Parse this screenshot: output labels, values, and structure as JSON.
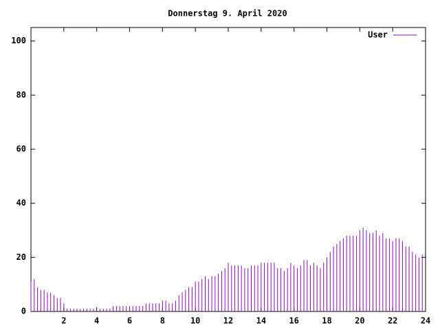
{
  "chart_data": {
    "type": "impulse",
    "title": "Donnerstag 9. April 2020",
    "x": [
      0,
      0.2,
      0.4,
      0.6,
      0.8,
      1,
      1.2,
      1.4,
      1.6,
      1.8,
      2,
      2.2,
      2.4,
      2.6,
      2.8,
      3,
      3.2,
      3.4,
      3.6,
      3.8,
      4,
      4.2,
      4.4,
      4.6,
      4.8,
      5,
      5.2,
      5.4,
      5.6,
      5.8,
      6,
      6.2,
      6.4,
      6.6,
      6.8,
      7,
      7.2,
      7.4,
      7.6,
      7.8,
      8,
      8.2,
      8.4,
      8.6,
      8.8,
      9,
      9.2,
      9.4,
      9.6,
      9.8,
      10,
      10.2,
      10.4,
      10.6,
      10.8,
      11,
      11.2,
      11.4,
      11.6,
      11.8,
      12,
      12.2,
      12.4,
      12.6,
      12.8,
      13,
      13.2,
      13.4,
      13.6,
      13.8,
      14,
      14.2,
      14.4,
      14.6,
      14.8,
      15,
      15.2,
      15.4,
      15.6,
      15.8,
      16,
      16.2,
      16.4,
      16.6,
      16.8,
      17,
      17.2,
      17.4,
      17.6,
      17.8,
      18,
      18.2,
      18.4,
      18.6,
      18.8,
      19,
      19.2,
      19.4,
      19.6,
      19.8,
      20,
      20.2,
      20.4,
      20.6,
      20.8,
      21,
      21.2,
      21.4,
      21.6,
      21.8,
      22,
      22.2,
      22.4,
      22.6,
      22.8,
      23,
      23.2,
      23.4,
      23.6,
      23.8
    ],
    "series": [
      {
        "name": "User",
        "color": "#9400d3",
        "values": [
          11,
          12,
          9,
          8,
          8,
          7,
          7,
          6,
          5,
          5,
          3,
          1,
          1,
          1,
          1,
          1,
          1,
          1,
          1,
          1,
          1,
          1,
          1,
          1,
          1,
          2,
          2,
          2,
          2,
          2,
          2,
          2,
          2,
          2,
          2,
          3,
          3,
          3,
          3,
          3,
          4,
          4,
          3,
          3,
          4,
          6,
          7,
          8,
          9,
          9,
          11,
          11,
          12,
          13,
          12,
          13,
          13,
          14,
          15,
          16,
          18,
          17,
          17,
          17,
          17,
          16,
          16,
          17,
          17,
          17,
          18,
          18,
          18,
          18,
          18,
          16,
          16,
          15,
          16,
          18,
          17,
          16,
          17,
          19,
          19,
          17,
          18,
          17,
          16,
          18,
          20,
          22,
          24,
          25,
          26,
          27,
          28,
          28,
          28,
          28,
          30,
          31,
          30,
          29,
          29,
          30,
          28,
          29,
          27,
          27,
          26,
          27,
          27,
          26,
          24,
          24,
          22,
          21,
          20,
          21
        ]
      }
    ],
    "xlim": [
      0,
      24
    ],
    "xticks": [
      2,
      4,
      6,
      8,
      10,
      12,
      14,
      16,
      18,
      20,
      22,
      24
    ],
    "ylim": [
      0,
      105
    ],
    "yticks": [
      0,
      20,
      40,
      60,
      80,
      100
    ],
    "legend": "top-right"
  }
}
